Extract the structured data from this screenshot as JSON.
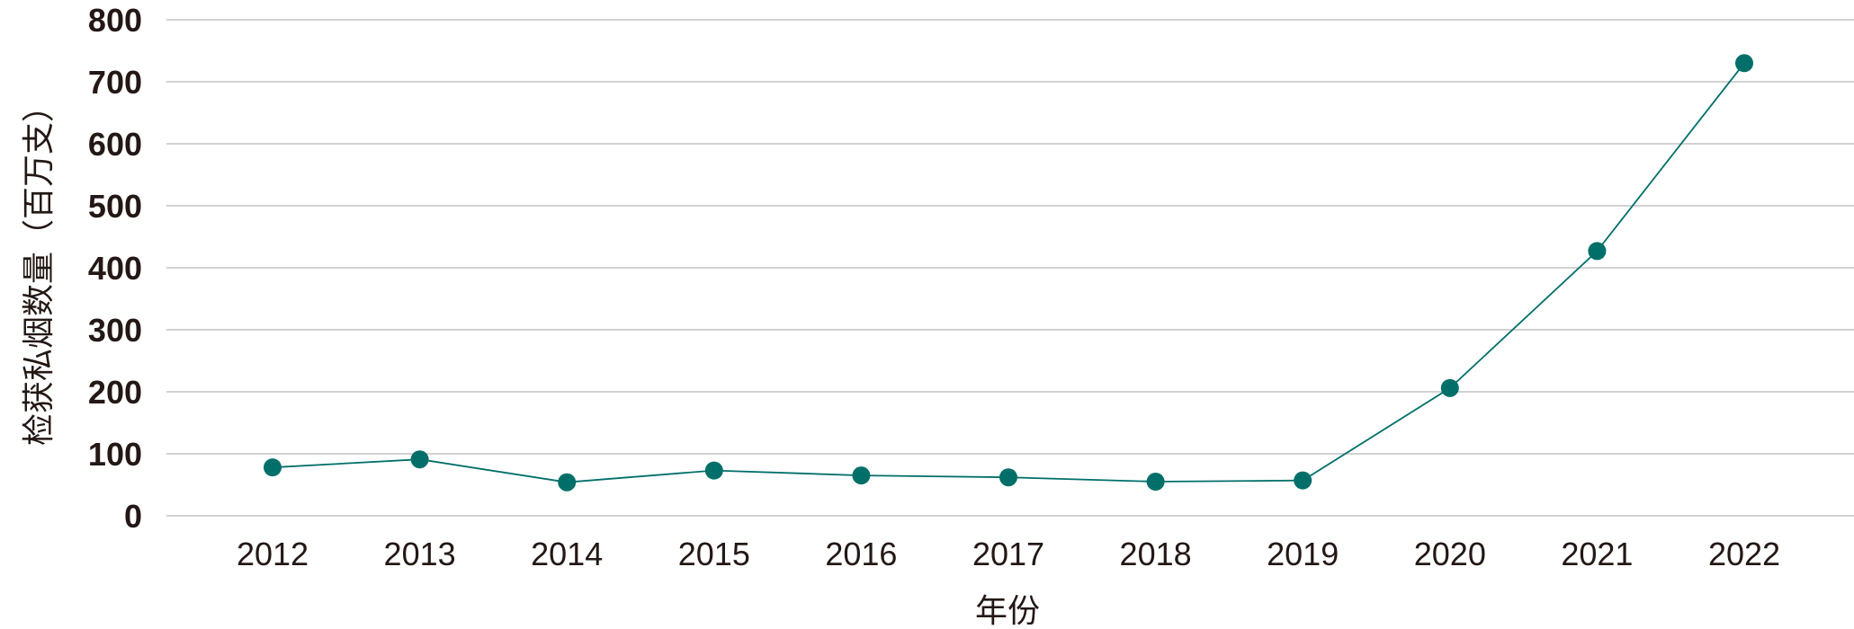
{
  "chart_data": {
    "type": "line",
    "title": "",
    "xlabel": "年份",
    "ylabel": "检获私烟数量（百万支）",
    "categories": [
      "2012",
      "2013",
      "2014",
      "2015",
      "2016",
      "2017",
      "2018",
      "2019",
      "2020",
      "2021",
      "2022"
    ],
    "series": [
      {
        "values": [
          78,
          91,
          54,
          73,
          65,
          62,
          55,
          57,
          206,
          427,
          730
        ]
      }
    ],
    "ylim": [
      0,
      800
    ],
    "yticks": [
      "0",
      "100",
      "200",
      "300",
      "400",
      "500",
      "600",
      "700",
      "800"
    ],
    "grid": true,
    "legend": "none",
    "colors": {
      "series": "#006f69",
      "grid": "#c4c4c4",
      "text": "#231815"
    }
  }
}
